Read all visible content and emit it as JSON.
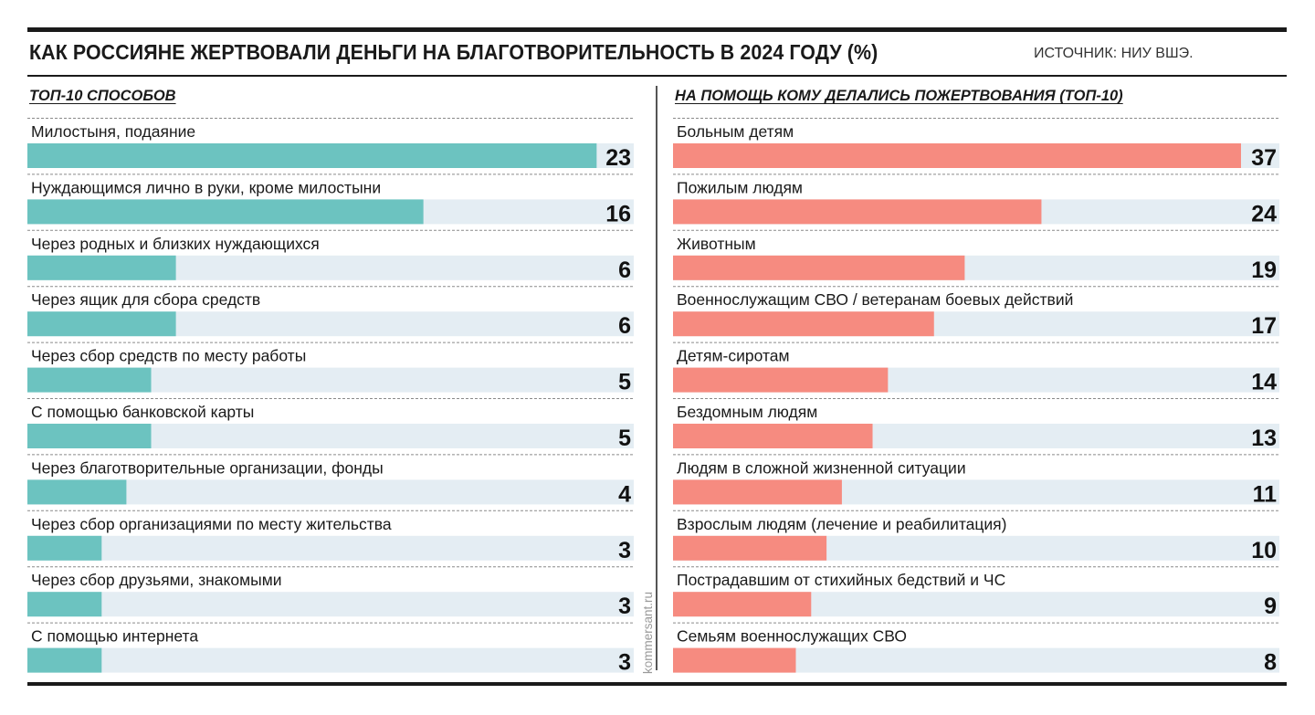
{
  "header": {
    "title": "КАК РОССИЯНЕ ЖЕРТВОВАЛИ ДЕНЬГИ НА БЛАГОТВОРИТЕЛЬНОСТЬ В 2024 ГОДУ (%)",
    "source": "ИСТОЧНИК: НИУ ВШЭ."
  },
  "watermark": "kommersant.ru",
  "colors": {
    "left_bar": "#6cc3c0",
    "right_bar": "#f68b80",
    "track": "#e4edf3",
    "text": "#1a1a1a"
  },
  "chart_data": [
    {
      "type": "bar",
      "orientation": "horizontal",
      "title": "ТОП-10 СПОСОБОВ",
      "xlim": [
        0,
        24.5
      ],
      "categories": [
        "Милостыня, подаяние",
        "Нуждающимся лично в руки, кроме милостыни",
        "Через родных и близких нуждающихся",
        "Через ящик для сбора средств",
        "Через сбор средств по месту работы",
        "С помощью банковской карты",
        "Через благотворительные организации, фонды",
        "Через сбор организациями по месту жительства",
        "Через сбор друзьями, знакомыми",
        "С помощью интернета"
      ],
      "values": [
        23,
        16,
        6,
        6,
        5,
        5,
        4,
        3,
        3,
        3
      ]
    },
    {
      "type": "bar",
      "orientation": "horizontal",
      "title": "НА ПОМОЩЬ КОМУ ДЕЛАЛИСЬ ПОЖЕРТВОВАНИЯ (ТОП-10)",
      "xlim": [
        0,
        39.5
      ],
      "categories": [
        "Больным детям",
        "Пожилым людям",
        "Животным",
        "Военнослужащим СВО / ветеранам боевых действий",
        "Детям-сиротам",
        "Бездомным людям",
        "Людям в сложной жизненной ситуации",
        "Взрослым людям (лечение и реабилитация)",
        "Пострадавшим от стихийных бедствий и ЧС",
        "Семьям военнослужащих СВО"
      ],
      "values": [
        37,
        24,
        19,
        17,
        14,
        13,
        11,
        10,
        9,
        8
      ]
    }
  ]
}
